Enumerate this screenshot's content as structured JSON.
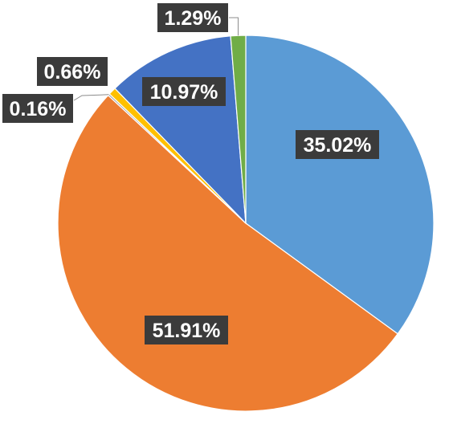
{
  "chart_data": {
    "type": "pie",
    "title": "",
    "start_angle_deg": 0,
    "direction": "clockwise",
    "slices": [
      {
        "label": "35.02%",
        "value": 35.02,
        "color": "#5b9bd5"
      },
      {
        "label": "51.91%",
        "value": 51.91,
        "color": "#ed7d31"
      },
      {
        "label": "0.16%",
        "value": 0.16,
        "color": "#a5a5a5"
      },
      {
        "label": "0.66%",
        "value": 0.66,
        "color": "#ffc000"
      },
      {
        "label": "10.97%",
        "value": 10.97,
        "color": "#4472c4"
      },
      {
        "label": "1.29%",
        "value": 1.29,
        "color": "#70ad47"
      }
    ],
    "legend": "none",
    "label_style": {
      "background": "#3b3b3b",
      "text_color": "#ffffff"
    }
  }
}
